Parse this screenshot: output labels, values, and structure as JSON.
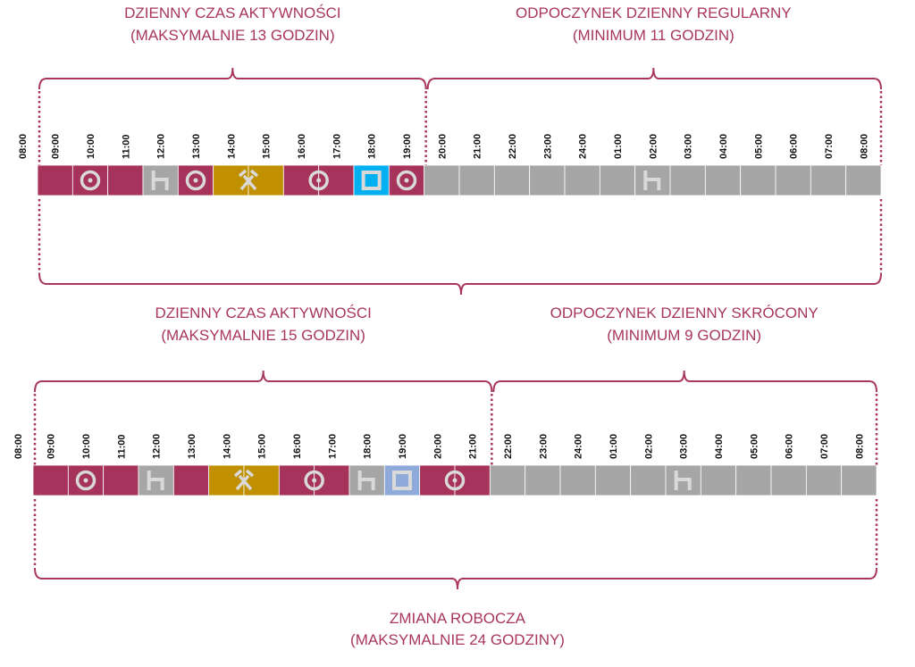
{
  "colors": {
    "work": "#a6335b",
    "other_work": "#c09000",
    "rest": "#a6a6a6",
    "availability": "#00b0f0",
    "availability_light": "#8eaadb",
    "bracket": "#a8365f",
    "icon": "#d9d9d9"
  },
  "diagrams": [
    {
      "hours": [
        "08:00",
        "09:00",
        "10:00",
        "11:00",
        "12:00",
        "13:00",
        "14:00",
        "15:00",
        "16:00",
        "17:00",
        "18:00",
        "19:00",
        "20:00",
        "21:00",
        "22:00",
        "23:00",
        "24:00",
        "01:00",
        "02:00",
        "03:00",
        "04:00",
        "05:00",
        "06:00",
        "07:00",
        "08:00"
      ],
      "left_label": [
        "DZIENNY CZAS AKTYWNOŚCI",
        "(MAKSYMALNIE 13 GODZIN)"
      ],
      "right_label": [
        "ODPOCZYNEK DZIENNY REGULARNY",
        "(MINIMUM 11 GODZIN)"
      ],
      "split_after_hours": 11,
      "segments": [
        {
          "type": "work",
          "hours": 1,
          "icon": ""
        },
        {
          "type": "work",
          "hours": 1,
          "icon": "steering-wheel-icon"
        },
        {
          "type": "work",
          "hours": 1,
          "icon": ""
        },
        {
          "type": "rest",
          "hours": 1,
          "icon": "bed-icon"
        },
        {
          "type": "work",
          "hours": 1,
          "icon": "steering-wheel-icon"
        },
        {
          "type": "other_work",
          "hours": 2,
          "icon": "hammers-icon"
        },
        {
          "type": "work",
          "hours": 2,
          "icon": "steering-wheel-icon"
        },
        {
          "type": "availability",
          "hours": 1,
          "icon": "availability-square-icon"
        },
        {
          "type": "work",
          "hours": 1,
          "icon": "steering-wheel-icon"
        },
        {
          "type": "rest",
          "hours": 6,
          "icon": ""
        },
        {
          "type": "rest",
          "hours": 1,
          "icon": "bed-icon"
        },
        {
          "type": "rest",
          "hours": 6,
          "icon": ""
        }
      ]
    },
    {
      "hours": [
        "08:00",
        "09:00",
        "10:00",
        "11:00",
        "12:00",
        "13:00",
        "14:00",
        "15:00",
        "16:00",
        "17:00",
        "18:00",
        "19:00",
        "20:00",
        "21:00",
        "22:00",
        "23:00",
        "24:00",
        "01:00",
        "02:00",
        "03:00",
        "04:00",
        "05:00",
        "06:00",
        "07:00",
        "08:00"
      ],
      "left_label": [
        "DZIENNY CZAS AKTYWNOŚCI",
        "(MAKSYMALNIE 15 GODZIN)"
      ],
      "right_label": [
        "ODPOCZYNEK DZIENNY SKRÓCONY",
        "(MINIMUM 9 GODZIN)"
      ],
      "split_after_hours": 13,
      "segments": [
        {
          "type": "work",
          "hours": 1,
          "icon": ""
        },
        {
          "type": "work",
          "hours": 1,
          "icon": "steering-wheel-icon"
        },
        {
          "type": "work",
          "hours": 1,
          "icon": ""
        },
        {
          "type": "rest",
          "hours": 1,
          "icon": "bed-icon"
        },
        {
          "type": "work",
          "hours": 1,
          "icon": ""
        },
        {
          "type": "other_work",
          "hours": 2,
          "icon": "hammers-icon"
        },
        {
          "type": "work",
          "hours": 2,
          "icon": "steering-wheel-icon"
        },
        {
          "type": "rest",
          "hours": 1,
          "icon": "bed-icon"
        },
        {
          "type": "availability_light",
          "hours": 1,
          "icon": "availability-square-icon"
        },
        {
          "type": "work",
          "hours": 2,
          "icon": "steering-wheel-icon"
        },
        {
          "type": "rest",
          "hours": 5,
          "icon": ""
        },
        {
          "type": "rest",
          "hours": 1,
          "icon": "bed-icon"
        },
        {
          "type": "rest",
          "hours": 5,
          "icon": ""
        }
      ]
    }
  ],
  "footer_label": [
    "ZMIANA ROBOCZA",
    "(MAKSYMALNIE 24 GODZINY)"
  ]
}
